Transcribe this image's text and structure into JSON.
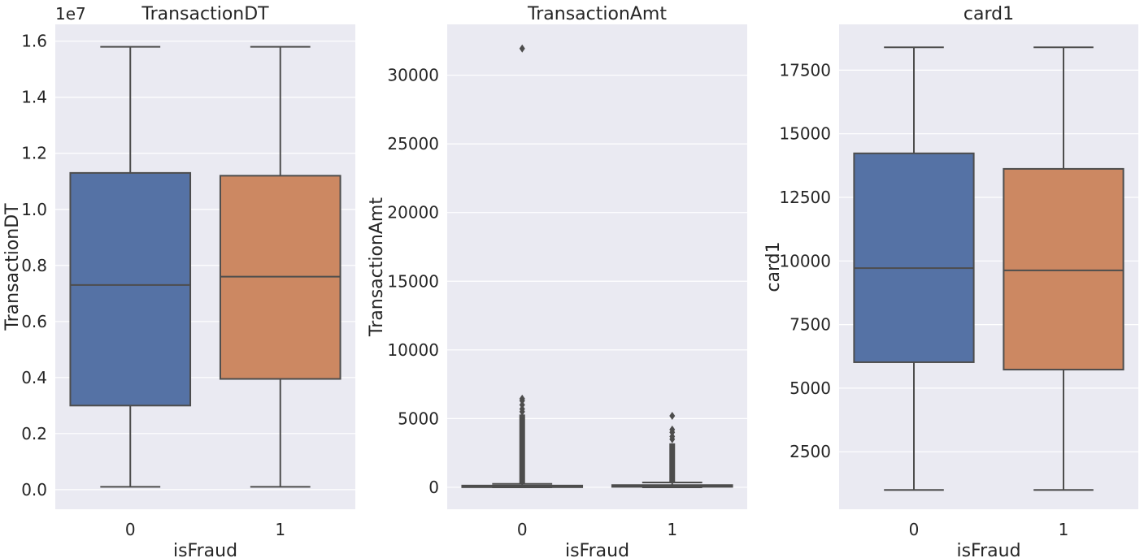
{
  "colors": {
    "class_0": "#5572a5",
    "class_1": "#cc8862",
    "axes_bg": "#eaeaf2"
  },
  "chart_data": [
    {
      "type": "box",
      "title": "TransactionDT",
      "xlabel": "isFraud",
      "ylabel": "TransactionDT",
      "offset_label": "1e7",
      "categories": [
        "0",
        "1"
      ],
      "ylim": [
        -0.07,
        1.66
      ],
      "yticks": [
        0.0,
        0.2,
        0.4,
        0.6,
        0.8,
        1.0,
        1.2,
        1.4,
        1.6
      ],
      "ytick_labels": [
        "0.0",
        "0.2",
        "0.4",
        "0.6",
        "0.8",
        "1.0",
        "1.2",
        "1.4",
        "1.6"
      ],
      "grid": true,
      "boxes": [
        {
          "category": "0",
          "whislo": 0.01,
          "q1": 0.3,
          "median": 0.73,
          "q3": 1.13,
          "whishi": 1.58,
          "fliers": []
        },
        {
          "category": "1",
          "whislo": 0.01,
          "q1": 0.395,
          "median": 0.76,
          "q3": 1.12,
          "whishi": 1.58,
          "fliers": []
        }
      ]
    },
    {
      "type": "box",
      "title": "TransactionAmt",
      "xlabel": "isFraud",
      "ylabel": "TransactionAmt",
      "categories": [
        "0",
        "1"
      ],
      "ylim": [
        -1600,
        33700
      ],
      "yticks": [
        0,
        5000,
        10000,
        15000,
        20000,
        25000,
        30000
      ],
      "ytick_labels": [
        "0",
        "5000",
        "10000",
        "15000",
        "20000",
        "25000",
        "30000"
      ],
      "grid": true,
      "boxes": [
        {
          "category": "0",
          "whislo": 0,
          "q1": 43,
          "median": 68,
          "q3": 125,
          "whishi": 250,
          "flier_range": [
            260,
            5300
          ],
          "fliers": [
            5500,
            5700,
            6000,
            6300,
            6450,
            31940
          ]
        },
        {
          "category": "1",
          "whislo": 0,
          "q1": 35,
          "median": 75,
          "q3": 160,
          "whishi": 350,
          "flier_range": [
            370,
            3200
          ],
          "fliers": [
            3500,
            3700,
            4000,
            4200,
            5200
          ]
        }
      ]
    },
    {
      "type": "box",
      "title": "card1",
      "xlabel": "isFraud",
      "ylabel": "card1",
      "categories": [
        "0",
        "1"
      ],
      "ylim": [
        240,
        19300
      ],
      "yticks": [
        2500,
        5000,
        7500,
        10000,
        12500,
        15000,
        17500
      ],
      "ytick_labels": [
        "2500",
        "5000",
        "7500",
        "10000",
        "12500",
        "15000",
        "17500"
      ],
      "grid": true,
      "boxes": [
        {
          "category": "0",
          "whislo": 1000,
          "q1": 6020,
          "median": 9720,
          "q3": 14230,
          "whishi": 18400,
          "fliers": []
        },
        {
          "category": "1",
          "whislo": 1000,
          "q1": 5730,
          "median": 9630,
          "q3": 13620,
          "whishi": 18400,
          "fliers": []
        }
      ]
    }
  ]
}
